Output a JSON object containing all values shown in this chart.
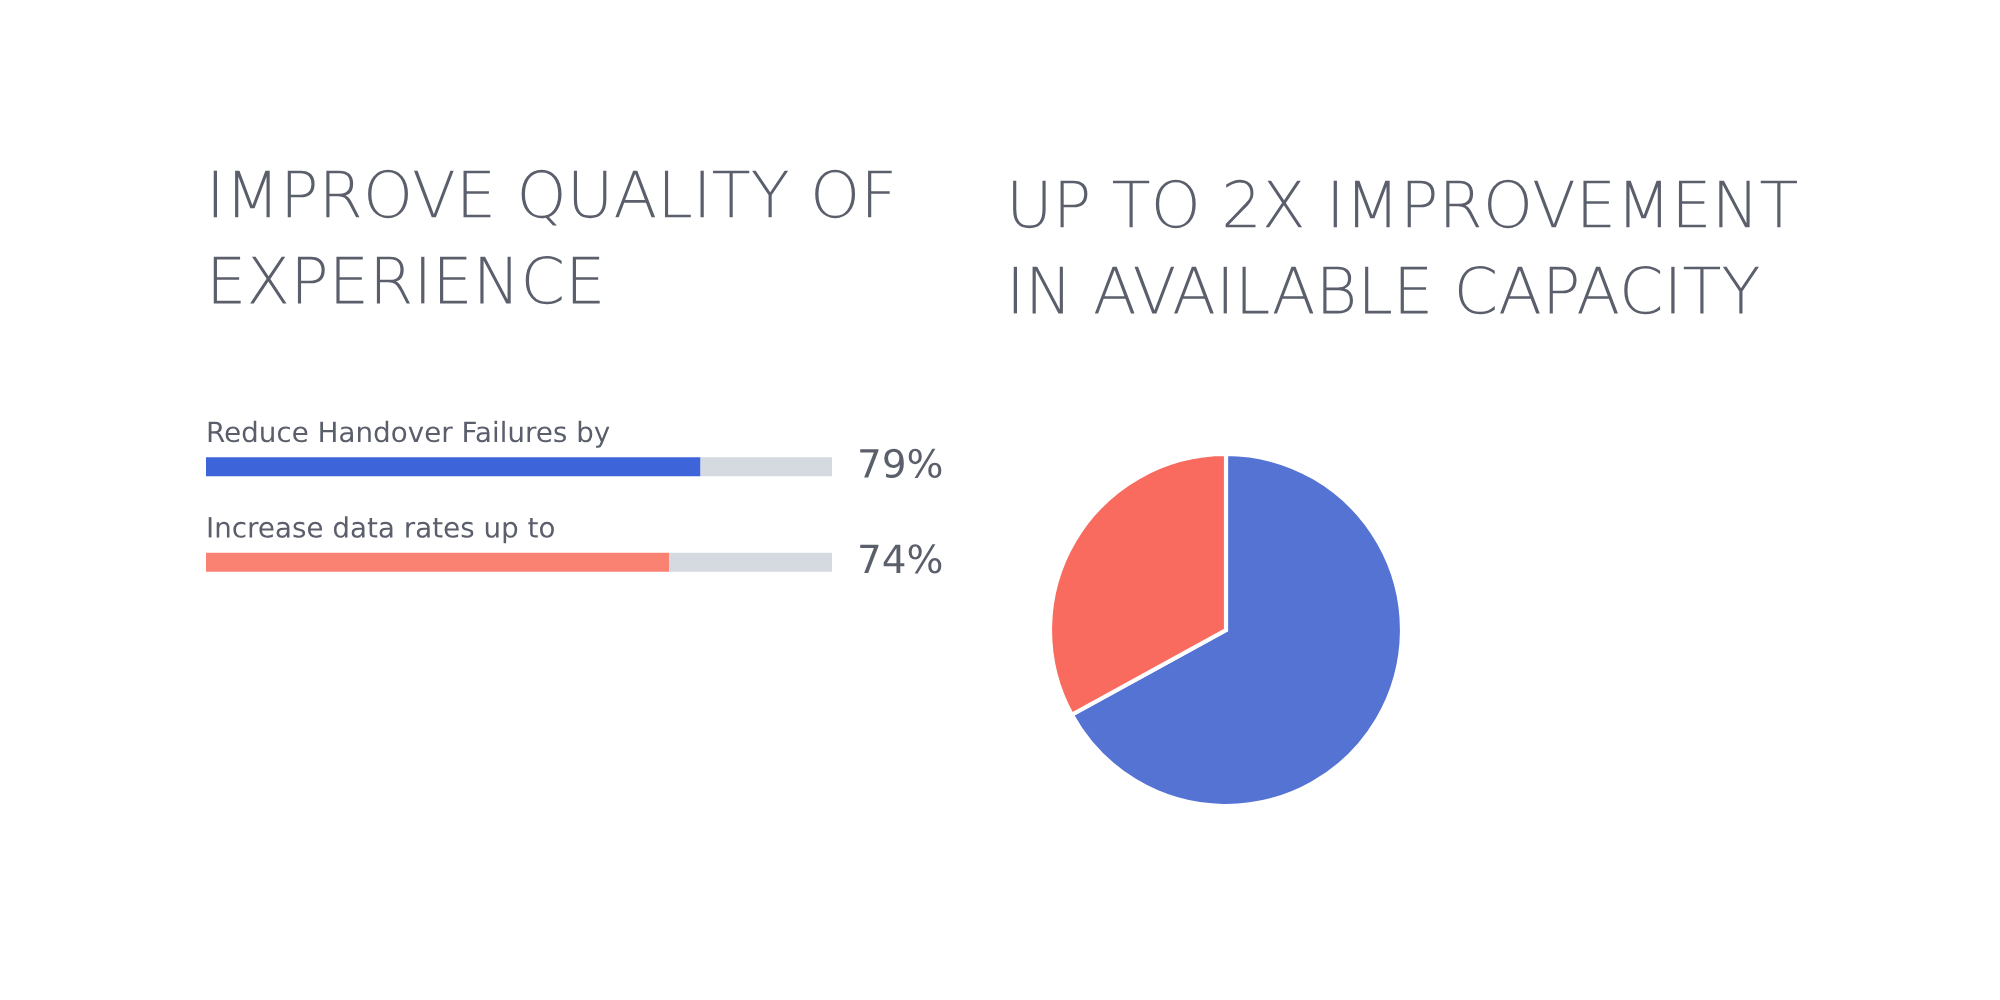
{
  "chart_data": [
    {
      "type": "bar",
      "orientation": "horizontal",
      "stacked": true,
      "title": "IMPROVE QUALITY OF EXPERIENCE",
      "categories": [
        "Reduce Handover Failures by",
        "Increase data rates up to"
      ],
      "series": [
        {
          "colors": [
            "#3d64d8",
            "#f98273"
          ],
          "values": [
            79,
            74
          ],
          "value_labels": [
            "79%",
            "74%"
          ]
        },
        {
          "color": "#d5dae1",
          "values": [
            21,
            26
          ]
        }
      ],
      "xlim": [
        0,
        100
      ],
      "tick_labels": false
    },
    {
      "type": "pie",
      "title": "UP TO 2X IMPROVEMENT IN AVAILABLE CAPACITY",
      "categories": [
        null,
        null
      ],
      "values": [
        67,
        33
      ],
      "colors": [
        "#5473d3",
        "#f96b5f"
      ]
    }
  ]
}
